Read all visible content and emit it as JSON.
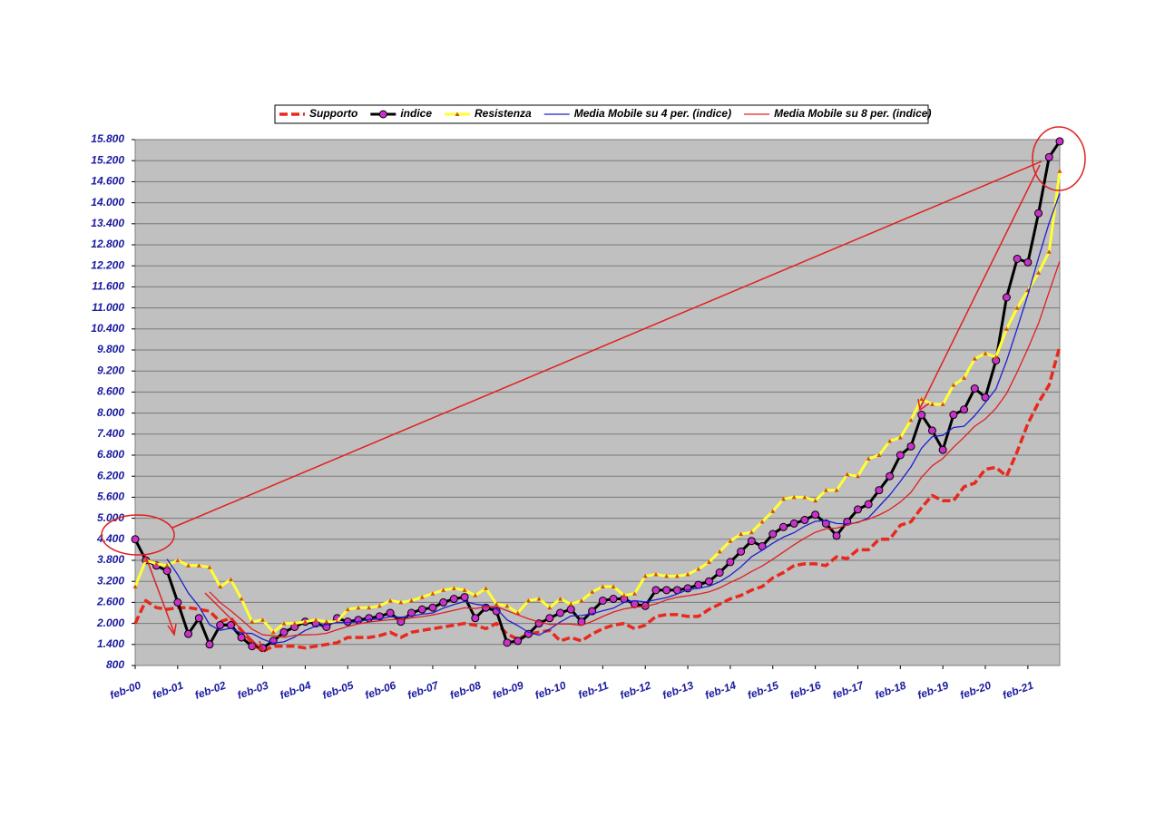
{
  "chart_data": {
    "type": "line",
    "categories": [
      "feb-00",
      null,
      null,
      null,
      "feb-01",
      null,
      null,
      null,
      "feb-02",
      null,
      null,
      null,
      "feb-03",
      null,
      null,
      null,
      "feb-04",
      null,
      null,
      null,
      "feb-05",
      null,
      null,
      null,
      "feb-06",
      null,
      null,
      null,
      "feb-07",
      null,
      null,
      null,
      "feb-08",
      null,
      null,
      null,
      "feb-09",
      null,
      null,
      null,
      "feb-10",
      null,
      null,
      null,
      "feb-11",
      null,
      null,
      null,
      "feb-12",
      null,
      null,
      null,
      "feb-13",
      null,
      null,
      null,
      "feb-14",
      null,
      null,
      null,
      "feb-15",
      null,
      null,
      null,
      "feb-16",
      null,
      null,
      null,
      "feb-17",
      null,
      null,
      null,
      "feb-18",
      null,
      null,
      null,
      "feb-19",
      null,
      null,
      null,
      "feb-20",
      null,
      null,
      null,
      "feb-21",
      null,
      null,
      null
    ],
    "series": [
      {
        "name": "Supporto",
        "color": "#e8291c",
        "width": 3.5,
        "dash": "9,4",
        "marker": null,
        "values": [
          2000,
          2650,
          2450,
          2400,
          2450,
          2450,
          2400,
          2350,
          2050,
          2150,
          1800,
          1450,
          1200,
          1350,
          1350,
          1350,
          1300,
          1350,
          1400,
          1450,
          1600,
          1600,
          1600,
          1650,
          1750,
          1600,
          1750,
          1800,
          1850,
          1900,
          1950,
          2000,
          1950,
          1850,
          2000,
          1700,
          1550,
          1700,
          1750,
          1800,
          1500,
          1600,
          1500,
          1700,
          1850,
          1950,
          2000,
          1850,
          1950,
          2200,
          2250,
          2250,
          2200,
          2200,
          2400,
          2550,
          2700,
          2800,
          2950,
          3050,
          3300,
          3450,
          3650,
          3700,
          3700,
          3650,
          3900,
          3850,
          4100,
          4100,
          4400,
          4400,
          4800,
          4900,
          5300,
          5650,
          5500,
          5500,
          5900,
          6000,
          6400,
          6450,
          6200,
          6900,
          7700,
          8300,
          8800,
          9900
        ]
      },
      {
        "name": "indice",
        "color": "#000000",
        "width": 3,
        "dash": null,
        "marker": "circle",
        "marker_color": "#c832c8",
        "values": [
          4400,
          3800,
          3650,
          3500,
          2600,
          1700,
          2150,
          1400,
          1950,
          1950,
          1600,
          1350,
          1300,
          1500,
          1750,
          1900,
          2050,
          2000,
          1900,
          2150,
          2050,
          2100,
          2150,
          2200,
          2300,
          2050,
          2300,
          2400,
          2450,
          2600,
          2700,
          2750,
          2150,
          2450,
          2350,
          1450,
          1500,
          1700,
          2000,
          2150,
          2300,
          2400,
          2050,
          2350,
          2650,
          2700,
          2700,
          2550,
          2500,
          2950,
          2950,
          2950,
          3000,
          3100,
          3200,
          3450,
          3750,
          4050,
          4350,
          4200,
          4550,
          4750,
          4850,
          4950,
          5100,
          4850,
          4500,
          4900,
          5250,
          5400,
          5800,
          6200,
          6800,
          7050,
          7950,
          7500,
          6950,
          7950,
          8100,
          8700,
          8450,
          9500,
          11300,
          12400,
          12300,
          13700,
          15300,
          15750
        ]
      },
      {
        "name": "Resistenza",
        "color": "#ffff33",
        "width": 3,
        "dash": null,
        "marker": "triangle",
        "marker_color": "#d05010",
        "values": [
          3050,
          3800,
          3700,
          3650,
          3800,
          3650,
          3650,
          3600,
          3050,
          3250,
          2700,
          2050,
          2100,
          1750,
          2000,
          2000,
          2050,
          2100,
          2050,
          2050,
          2400,
          2450,
          2450,
          2500,
          2650,
          2600,
          2650,
          2750,
          2850,
          2950,
          3000,
          2950,
          2800,
          3000,
          2550,
          2500,
          2300,
          2650,
          2700,
          2450,
          2700,
          2550,
          2650,
          2900,
          3050,
          3050,
          2800,
          2850,
          3350,
          3400,
          3350,
          3350,
          3400,
          3550,
          3750,
          4050,
          4350,
          4550,
          4600,
          4900,
          5200,
          5550,
          5600,
          5600,
          5500,
          5800,
          5800,
          6250,
          6200,
          6700,
          6800,
          7200,
          7300,
          7800,
          8400,
          8250,
          8250,
          8800,
          9000,
          9550,
          9700,
          9600,
          10400,
          11000,
          11500,
          12000,
          12600,
          14900
        ]
      },
      {
        "name": "Media Mobile su 4 per. (indice)",
        "color": "#1f1fd0",
        "width": 1.3,
        "dash": null,
        "marker": null,
        "values": [
          null,
          null,
          null,
          3837,
          3388,
          2863,
          2488,
          1963,
          1800,
          1863,
          1725,
          1713,
          1550,
          1438,
          1475,
          1613,
          1800,
          1925,
          1963,
          2025,
          2025,
          2050,
          2113,
          2125,
          2188,
          2175,
          2213,
          2263,
          2300,
          2438,
          2538,
          2625,
          2550,
          2513,
          2425,
          2100,
          1938,
          1750,
          1663,
          1838,
          2038,
          2213,
          2225,
          2275,
          2363,
          2438,
          2600,
          2650,
          2613,
          2675,
          2738,
          2838,
          2963,
          3000,
          3063,
          3188,
          3375,
          3613,
          3900,
          4088,
          4288,
          4463,
          4588,
          4775,
          4913,
          4938,
          4850,
          4838,
          4875,
          5013,
          5338,
          5663,
          6050,
          6463,
          7000,
          7325,
          7363,
          7588,
          7625,
          7925,
          8300,
          8688,
          9488,
          10413,
          11375,
          12425,
          13425,
          14263
        ]
      },
      {
        "name": "Media Mobile su 8 per. (indice)",
        "color": "#e02020",
        "width": 1.3,
        "dash": null,
        "marker": null,
        "values": [
          null,
          null,
          null,
          null,
          null,
          null,
          null,
          2900,
          2594,
          2363,
          2106,
          1838,
          1675,
          1650,
          1600,
          1663,
          1675,
          1681,
          1719,
          1819,
          1913,
          1988,
          2038,
          2075,
          2106,
          2113,
          2163,
          2194,
          2244,
          2306,
          2375,
          2444,
          2425,
          2475,
          2481,
          2363,
          2244,
          2131,
          2044,
          1969,
          1988,
          1981,
          1944,
          2056,
          2200,
          2325,
          2413,
          2463,
          2488,
          2556,
          2669,
          2744,
          2788,
          2838,
          2900,
          3013,
          3169,
          3306,
          3481,
          3638,
          3831,
          4038,
          4244,
          4431,
          4600,
          4700,
          4719,
          4806,
          4894,
          4975,
          5094,
          5250,
          5463,
          5738,
          6169,
          6494,
          6706,
          7025,
          7313,
          7625,
          7831,
          8138,
          8556,
          9169,
          9838,
          10556,
          11456,
          12338
        ]
      }
    ],
    "ylim": [
      800,
      15800
    ],
    "yticks": [
      800,
      {
        "value": 1400,
        "label": "1.400"
      },
      {
        "value": 2000,
        "label": "2.000"
      },
      {
        "value": 2600,
        "label": "2.600"
      },
      {
        "value": 3200,
        "label": "3.200"
      },
      {
        "value": 3800,
        "label": "3.800"
      },
      {
        "value": 4400,
        "label": "4.400"
      },
      {
        "value": 5000,
        "label": "5.000"
      },
      {
        "value": 5600,
        "label": "5.600"
      },
      {
        "value": 6200,
        "label": "6.200"
      },
      {
        "value": 6800,
        "label": "6.800"
      },
      {
        "value": 7400,
        "label": "7.400"
      },
      {
        "value": 8000,
        "label": "8.000"
      },
      {
        "value": 8600,
        "label": "8.600"
      },
      {
        "value": 9200,
        "label": "9.200"
      },
      {
        "value": 9800,
        "label": "9.800"
      },
      {
        "value": 10400,
        "label": "10.400"
      },
      {
        "value": 11000,
        "label": "11.000"
      },
      {
        "value": 11600,
        "label": "11.600"
      },
      {
        "value": 12200,
        "label": "12.200"
      },
      {
        "value": 12800,
        "label": "12.800"
      },
      {
        "value": 13400,
        "label": "13.400"
      },
      {
        "value": 14000,
        "label": "14.000"
      },
      {
        "value": 14600,
        "label": "14.600"
      },
      {
        "value": 15200,
        "label": "15.200"
      },
      {
        "value": 15800,
        "label": "15.800"
      }
    ],
    "grid": true,
    "legend": "top"
  }
}
